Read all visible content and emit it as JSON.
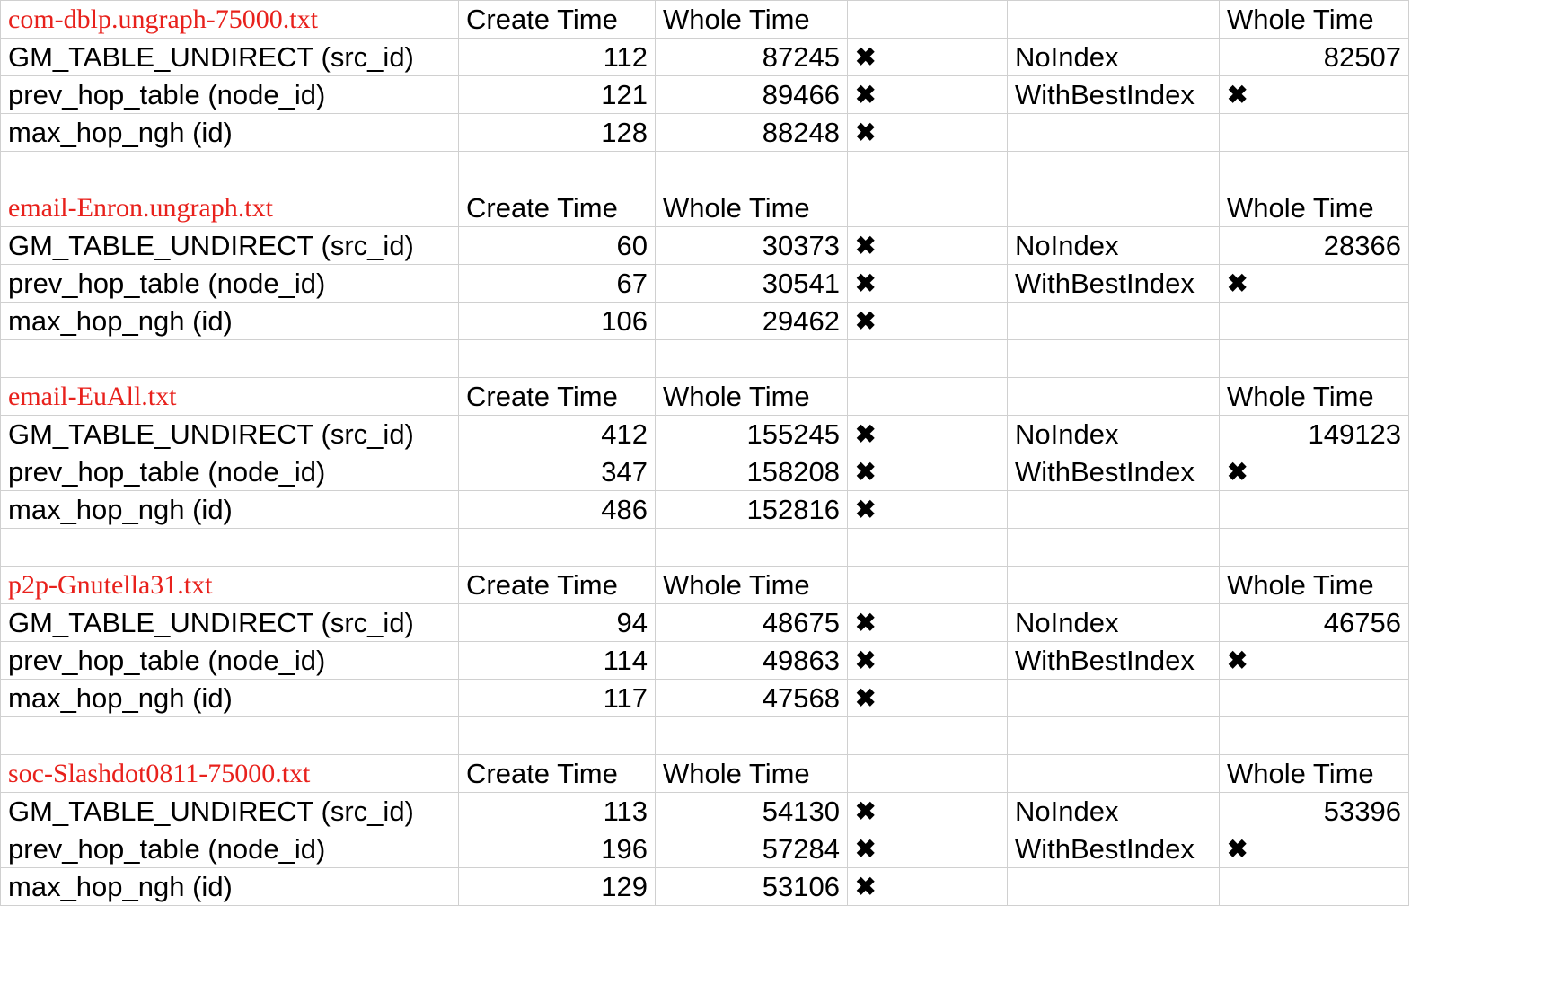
{
  "column_headers": {
    "create_time": "Create Time",
    "whole_time": "Whole Time",
    "side_whole_time": "Whole Time"
  },
  "mark_symbol": "✖",
  "blocks": [
    {
      "dataset": "com-dblp.ungraph-75000.txt",
      "rows": [
        {
          "label": "GM_TABLE_UNDIRECT (src_id)",
          "create": "112",
          "whole": "87245",
          "side_label": "NoIndex",
          "side_value": "82507"
        },
        {
          "label": "prev_hop_table (node_id)",
          "create": "121",
          "whole": "89466",
          "side_label": "WithBestIndex",
          "side_value": ""
        },
        {
          "label": "max_hop_ngh (id)",
          "create": "128",
          "whole": "88248",
          "side_label": "",
          "side_value": ""
        }
      ]
    },
    {
      "dataset": "email-Enron.ungraph.txt",
      "rows": [
        {
          "label": "GM_TABLE_UNDIRECT (src_id)",
          "create": "60",
          "whole": "30373",
          "side_label": "NoIndex",
          "side_value": "28366"
        },
        {
          "label": "prev_hop_table (node_id)",
          "create": "67",
          "whole": "30541",
          "side_label": "WithBestIndex",
          "side_value": ""
        },
        {
          "label": "max_hop_ngh (id)",
          "create": "106",
          "whole": "29462",
          "side_label": "",
          "side_value": ""
        }
      ]
    },
    {
      "dataset": "email-EuAll.txt",
      "rows": [
        {
          "label": "GM_TABLE_UNDIRECT (src_id)",
          "create": "412",
          "whole": "155245",
          "side_label": "NoIndex",
          "side_value": "149123"
        },
        {
          "label": "prev_hop_table (node_id)",
          "create": "347",
          "whole": "158208",
          "side_label": "WithBestIndex",
          "side_value": ""
        },
        {
          "label": "max_hop_ngh (id)",
          "create": "486",
          "whole": "152816",
          "side_label": "",
          "side_value": ""
        }
      ]
    },
    {
      "dataset": "p2p-Gnutella31.txt",
      "rows": [
        {
          "label": "GM_TABLE_UNDIRECT (src_id)",
          "create": "94",
          "whole": "48675",
          "side_label": "NoIndex",
          "side_value": "46756"
        },
        {
          "label": "prev_hop_table (node_id)",
          "create": "114",
          "whole": "49863",
          "side_label": "WithBestIndex",
          "side_value": ""
        },
        {
          "label": "max_hop_ngh (id)",
          "create": "117",
          "whole": "47568",
          "side_label": "",
          "side_value": ""
        }
      ]
    },
    {
      "dataset": "soc-Slashdot0811-75000.txt",
      "rows": [
        {
          "label": "GM_TABLE_UNDIRECT (src_id)",
          "create": "113",
          "whole": "54130",
          "side_label": "NoIndex",
          "side_value": "53396"
        },
        {
          "label": "prev_hop_table (node_id)",
          "create": "196",
          "whole": "57284",
          "side_label": "WithBestIndex",
          "side_value": ""
        },
        {
          "label": "max_hop_ngh (id)",
          "create": "129",
          "whole": "53106",
          "side_label": "",
          "side_value": ""
        }
      ]
    }
  ]
}
